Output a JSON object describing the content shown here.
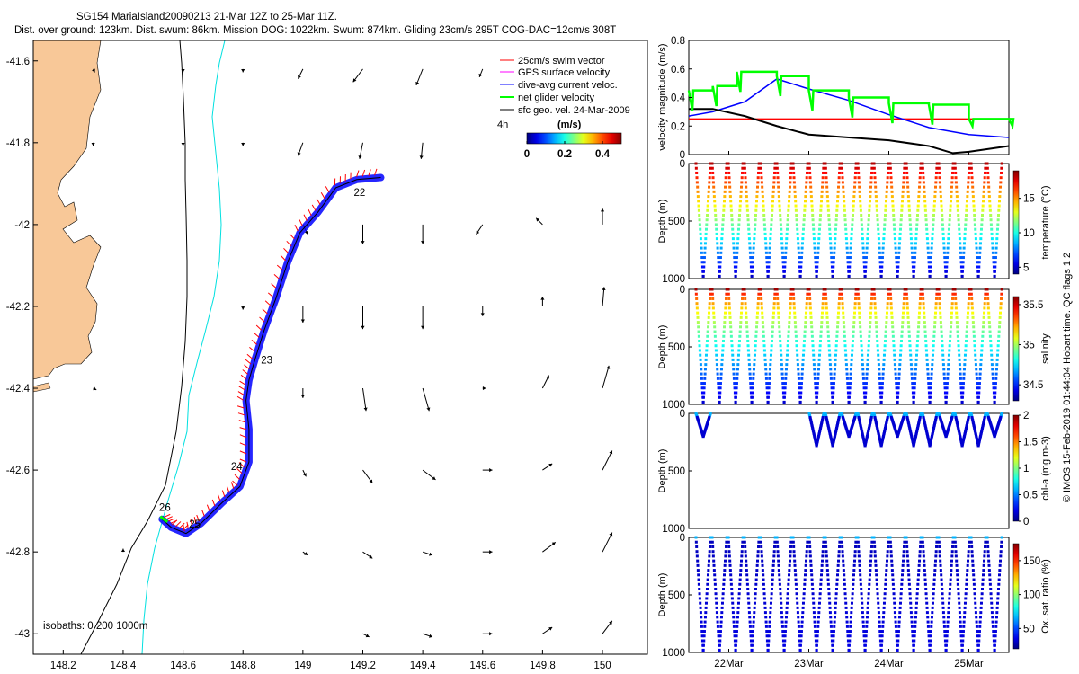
{
  "title_line1": "SG154 MariaIsland20090213 21-Mar 12Z to 25-Mar 11Z.",
  "title_line2": "Dist. over ground: 123km. Dist. swum: 86km. Mission DOG: 1022km. Swum: 874km. Gliding 23cm/s 295T COG-DAC=12cm/s 308T",
  "side_note": "© IMOS 15-Feb-2019 01:44:04 Hobart time. QC flags 1  2",
  "colors": {
    "land": "#f8c898",
    "swim": "#ff0000",
    "gps": "#ff00ff",
    "dac": "#0000ff",
    "net": "#00ff00",
    "geo": "#000000",
    "iso200": "#000000",
    "iso1000": "#00e0e0"
  },
  "chart_data": [
    {
      "id": "map",
      "type": "map",
      "xlim": [
        148.1,
        150.15
      ],
      "ylim": [
        -43.05,
        -41.55
      ],
      "xticks": [
        "148.2",
        "148.4",
        "148.6",
        "148.8",
        "149",
        "149.2",
        "149.4",
        "149.6",
        "149.8",
        "150"
      ],
      "xtick_values": [
        148.2,
        148.4,
        148.6,
        148.8,
        149.0,
        149.2,
        149.4,
        149.6,
        149.8,
        150.0
      ],
      "yticks": [
        "-41.6",
        "-41.8",
        "-42",
        "-42.2",
        "-42.4",
        "-42.6",
        "-42.8",
        "-43"
      ],
      "ytick_values": [
        -41.6,
        -41.8,
        -42.0,
        -42.2,
        -42.4,
        -42.6,
        -42.8,
        -43.0
      ],
      "legend": {
        "position": "top-right",
        "entries": [
          "25cm/s swim vector",
          "GPS surface velocity",
          "dive-avg current veloc.",
          "net glider velocity",
          "sfc geo. vel. 24-Mar-2009"
        ],
        "interval": "4h",
        "colorbar_label": "(m/s)",
        "colorbar_ticks": [
          "0",
          "0.2",
          "0.4"
        ],
        "colorbar_range": [
          0,
          0.5
        ]
      },
      "isobaths_label": "isobaths: 0   200  1000m",
      "track": [
        [
          148.53,
          -42.72
        ],
        [
          148.56,
          -42.74
        ],
        [
          148.61,
          -42.755
        ],
        [
          148.66,
          -42.73
        ],
        [
          148.73,
          -42.68
        ],
        [
          148.79,
          -42.64
        ],
        [
          148.82,
          -42.58
        ],
        [
          148.82,
          -42.5
        ],
        [
          148.81,
          -42.43
        ],
        [
          148.82,
          -42.38
        ],
        [
          148.84,
          -42.33
        ],
        [
          148.87,
          -42.26
        ],
        [
          148.91,
          -42.18
        ],
        [
          148.95,
          -42.09
        ],
        [
          148.99,
          -42.02
        ],
        [
          149.05,
          -41.97
        ],
        [
          149.11,
          -41.91
        ],
        [
          149.18,
          -41.89
        ],
        [
          149.26,
          -41.885
        ]
      ],
      "day_labels": [
        {
          "text": "22",
          "lon": 149.17,
          "lat": -41.93
        },
        {
          "text": "23",
          "lon": 148.86,
          "lat": -42.34
        },
        {
          "text": "24",
          "lon": 148.76,
          "lat": -42.6
        },
        {
          "text": "25",
          "lon": 148.62,
          "lat": -42.74
        },
        {
          "text": "26",
          "lon": 148.52,
          "lat": -42.7
        }
      ],
      "geo_vectors": [
        {
          "lon": 148.3,
          "lat": -41.62,
          "u": 0.01,
          "v": -0.02
        },
        {
          "lon": 148.6,
          "lat": -41.62,
          "u": 0.0,
          "v": -0.02
        },
        {
          "lon": 148.8,
          "lat": -41.62,
          "u": 0.0,
          "v": -0.02
        },
        {
          "lon": 149.0,
          "lat": -41.62,
          "u": -0.03,
          "v": -0.06
        },
        {
          "lon": 149.2,
          "lat": -41.62,
          "u": -0.06,
          "v": -0.08
        },
        {
          "lon": 149.4,
          "lat": -41.62,
          "u": -0.04,
          "v": -0.1
        },
        {
          "lon": 149.6,
          "lat": -41.62,
          "u": -0.02,
          "v": -0.05
        },
        {
          "lon": 148.3,
          "lat": -41.8,
          "u": 0.0,
          "v": -0.02
        },
        {
          "lon": 148.6,
          "lat": -41.8,
          "u": 0.0,
          "v": -0.02
        },
        {
          "lon": 148.8,
          "lat": -41.8,
          "u": 0.0,
          "v": -0.02
        },
        {
          "lon": 149.0,
          "lat": -41.8,
          "u": -0.03,
          "v": -0.08
        },
        {
          "lon": 149.2,
          "lat": -41.8,
          "u": -0.02,
          "v": -0.1
        },
        {
          "lon": 149.4,
          "lat": -41.8,
          "u": -0.01,
          "v": -0.1
        },
        {
          "lon": 149.0,
          "lat": -42.0,
          "u": 0.03,
          "v": -0.06
        },
        {
          "lon": 149.2,
          "lat": -42.0,
          "u": 0.0,
          "v": -0.12
        },
        {
          "lon": 149.4,
          "lat": -42.0,
          "u": 0.0,
          "v": -0.12
        },
        {
          "lon": 149.6,
          "lat": -42.0,
          "u": -0.04,
          "v": -0.06
        },
        {
          "lon": 149.8,
          "lat": -42.0,
          "u": -0.04,
          "v": 0.04
        },
        {
          "lon": 150.0,
          "lat": -42.0,
          "u": 0.0,
          "v": 0.1
        },
        {
          "lon": 148.8,
          "lat": -42.2,
          "u": 0.0,
          "v": -0.02
        },
        {
          "lon": 149.0,
          "lat": -42.2,
          "u": 0.0,
          "v": -0.1
        },
        {
          "lon": 149.2,
          "lat": -42.2,
          "u": 0.0,
          "v": -0.14
        },
        {
          "lon": 149.4,
          "lat": -42.2,
          "u": 0.0,
          "v": -0.14
        },
        {
          "lon": 149.6,
          "lat": -42.2,
          "u": 0.0,
          "v": -0.06
        },
        {
          "lon": 149.8,
          "lat": -42.2,
          "u": 0.0,
          "v": 0.06
        },
        {
          "lon": 150.0,
          "lat": -42.2,
          "u": 0.01,
          "v": 0.12
        },
        {
          "lon": 148.3,
          "lat": -42.4,
          "u": 0.02,
          "v": -0.01
        },
        {
          "lon": 149.0,
          "lat": -42.4,
          "u": 0.0,
          "v": -0.06
        },
        {
          "lon": 149.2,
          "lat": -42.4,
          "u": 0.02,
          "v": -0.14
        },
        {
          "lon": 149.4,
          "lat": -42.4,
          "u": 0.04,
          "v": -0.14
        },
        {
          "lon": 149.6,
          "lat": -42.4,
          "u": 0.02,
          "v": 0.0
        },
        {
          "lon": 149.8,
          "lat": -42.4,
          "u": 0.04,
          "v": 0.08
        },
        {
          "lon": 150.0,
          "lat": -42.4,
          "u": 0.04,
          "v": 0.14
        },
        {
          "lon": 149.0,
          "lat": -42.6,
          "u": 0.02,
          "v": -0.04
        },
        {
          "lon": 149.2,
          "lat": -42.6,
          "u": 0.06,
          "v": -0.08
        },
        {
          "lon": 149.4,
          "lat": -42.6,
          "u": 0.08,
          "v": -0.06
        },
        {
          "lon": 149.6,
          "lat": -42.6,
          "u": 0.06,
          "v": 0.0
        },
        {
          "lon": 149.8,
          "lat": -42.6,
          "u": 0.06,
          "v": 0.04
        },
        {
          "lon": 150.0,
          "lat": -42.6,
          "u": 0.06,
          "v": 0.12
        },
        {
          "lon": 148.4,
          "lat": -42.8,
          "u": 0.0,
          "v": 0.02
        },
        {
          "lon": 149.0,
          "lat": -42.8,
          "u": 0.03,
          "v": -0.02
        },
        {
          "lon": 149.2,
          "lat": -42.8,
          "u": 0.06,
          "v": -0.04
        },
        {
          "lon": 149.4,
          "lat": -42.8,
          "u": 0.06,
          "v": -0.02
        },
        {
          "lon": 149.6,
          "lat": -42.8,
          "u": 0.06,
          "v": 0.0
        },
        {
          "lon": 149.8,
          "lat": -42.8,
          "u": 0.08,
          "v": 0.06
        },
        {
          "lon": 150.0,
          "lat": -42.8,
          "u": 0.06,
          "v": 0.12
        },
        {
          "lon": 149.2,
          "lat": -43.0,
          "u": 0.04,
          "v": -0.02
        },
        {
          "lon": 149.4,
          "lat": -43.0,
          "u": 0.06,
          "v": -0.02
        },
        {
          "lon": 149.6,
          "lat": -43.0,
          "u": 0.06,
          "v": 0.0
        },
        {
          "lon": 149.8,
          "lat": -43.0,
          "u": 0.06,
          "v": 0.04
        },
        {
          "lon": 150.0,
          "lat": -43.0,
          "u": 0.06,
          "v": 0.08
        }
      ]
    },
    {
      "id": "velocity",
      "type": "line",
      "ylabel": "velocity magnitude (m/s)",
      "ylim": [
        0,
        0.8
      ],
      "yticks": [
        "0",
        "0.2",
        "0.4",
        "0.6",
        "0.8"
      ],
      "ytick_values": [
        0,
        0.2,
        0.4,
        0.6,
        0.8
      ],
      "xlim": [
        21.5,
        25.5
      ],
      "series": [
        {
          "name": "swim (const)",
          "color": "#ff0000",
          "x": [
            21.5,
            25.5
          ],
          "y": [
            0.25,
            0.25
          ]
        },
        {
          "name": "dive-avg current",
          "color": "#0000ff",
          "x": [
            21.5,
            21.8,
            22.2,
            22.6,
            23.0,
            23.5,
            24.0,
            24.5,
            25.0,
            25.5
          ],
          "y": [
            0.27,
            0.3,
            0.37,
            0.53,
            0.46,
            0.38,
            0.28,
            0.19,
            0.14,
            0.12
          ]
        },
        {
          "name": "sfc geo",
          "color": "#000000",
          "x": [
            21.5,
            21.8,
            22.2,
            22.6,
            23.0,
            23.5,
            24.0,
            24.5,
            24.8,
            25.0,
            25.5
          ],
          "y": [
            0.32,
            0.32,
            0.27,
            0.2,
            0.14,
            0.12,
            0.1,
            0.06,
            0.01,
            0.02,
            0.06
          ]
        },
        {
          "name": "net glider",
          "color": "#00ff00",
          "x": [
            21.5,
            21.8,
            22.1,
            22.6,
            23.0,
            23.5,
            24.0,
            24.5,
            25.0,
            25.5
          ],
          "y": [
            0.45,
            0.48,
            0.58,
            0.55,
            0.45,
            0.4,
            0.36,
            0.35,
            0.25,
            0.25
          ]
        }
      ]
    },
    {
      "id": "temperature",
      "type": "scatter",
      "ylabel": "Depth (m)",
      "ylim": [
        0,
        1000
      ],
      "yticks": [
        "0",
        "500",
        "1000"
      ],
      "colorbar_label": "temperature (°C)",
      "colorbar_ticks": [
        "5",
        "10",
        "15"
      ],
      "colorbar_range": [
        4,
        19
      ],
      "colormap": "jet",
      "variable_range": "19 at surface to 4 at depth"
    },
    {
      "id": "salinity",
      "type": "scatter",
      "ylabel": "Depth (m)",
      "ylim": [
        0,
        1000
      ],
      "yticks": [
        "0",
        "500",
        "1000"
      ],
      "colorbar_label": "salinity",
      "colorbar_ticks": [
        "34.5",
        "35",
        "35.5"
      ],
      "colorbar_range": [
        34.3,
        35.6
      ],
      "colormap": "jet",
      "variable_range": "35.5 at surface to 34.3 at depth"
    },
    {
      "id": "chla",
      "type": "scatter",
      "ylabel": "Depth (m)",
      "ylim": [
        0,
        1000
      ],
      "yticks": [
        "0",
        "500",
        "1000"
      ],
      "colorbar_label": "chl-a (mg m-3)",
      "colorbar_ticks": [
        "0",
        "0.5",
        "1",
        "1.5",
        "2"
      ],
      "colorbar_range": [
        0,
        2
      ],
      "colormap": "jet",
      "variable_range": "0 to 0.6 in top 250 m"
    },
    {
      "id": "oxygen",
      "type": "scatter",
      "ylabel": "Depth (m)",
      "ylim": [
        0,
        1000
      ],
      "yticks": [
        "0",
        "500",
        "1000"
      ],
      "colorbar_label": "Ox. sat. ratio (%)",
      "colorbar_ticks": [
        "50",
        "100",
        "150"
      ],
      "colorbar_range": [
        20,
        175
      ],
      "colormap": "jet",
      "variable_range": "about 30 to 60 throughout"
    }
  ],
  "time_axis": {
    "ticks": [
      "22Mar",
      "23Mar",
      "24Mar",
      "25Mar"
    ],
    "tick_days": [
      22,
      23,
      24,
      25
    ],
    "range_days": [
      21.5,
      25.5
    ]
  }
}
